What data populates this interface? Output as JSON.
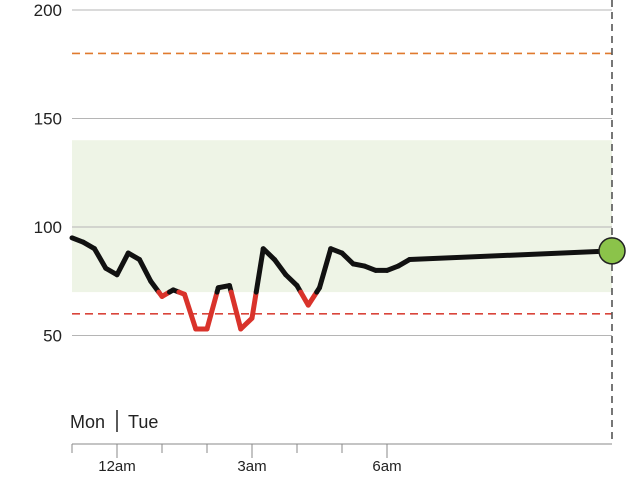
{
  "chart_data": {
    "type": "line",
    "title": "",
    "xlabel": "",
    "ylabel": "",
    "ylim": [
      0,
      205
    ],
    "yticks": [
      50,
      100,
      150,
      200
    ],
    "x_ticks": [
      "12am",
      "3am",
      "6am"
    ],
    "day_labels": {
      "left": "Mon",
      "right": "Tue"
    },
    "target_range": {
      "low": 70,
      "high": 140,
      "color": "#eef4e6"
    },
    "thresholds": [
      {
        "name": "high",
        "value": 180,
        "color": "#e07a2e"
      },
      {
        "name": "low",
        "value": 60,
        "color": "#d9453b"
      }
    ],
    "colors": {
      "in_range": "#111111",
      "below_range": "#d9332b",
      "current_marker": "#8bc34a",
      "now_line": "#555555"
    },
    "series": [
      {
        "x": [
          "23:00",
          "23:15",
          "23:30",
          "23:45",
          "00:00",
          "00:15",
          "00:30",
          "00:45",
          "01:00",
          "01:15",
          "01:30",
          "01:45",
          "02:00",
          "02:15",
          "02:30",
          "02:45",
          "03:00",
          "03:15",
          "03:30",
          "03:45",
          "04:00",
          "04:15",
          "04:30",
          "04:45",
          "05:00",
          "05:15",
          "05:30",
          "05:45",
          "06:00",
          "06:15",
          "06:30",
          "06:45"
        ],
        "values": [
          95,
          93,
          90,
          81,
          78,
          88,
          85,
          75,
          68,
          71,
          69,
          53,
          53,
          72,
          73,
          53,
          58,
          90,
          85,
          78,
          73,
          64,
          72,
          90,
          88,
          83,
          82,
          80,
          80,
          82,
          85,
          89
        ]
      }
    ],
    "current_value": 89
  }
}
